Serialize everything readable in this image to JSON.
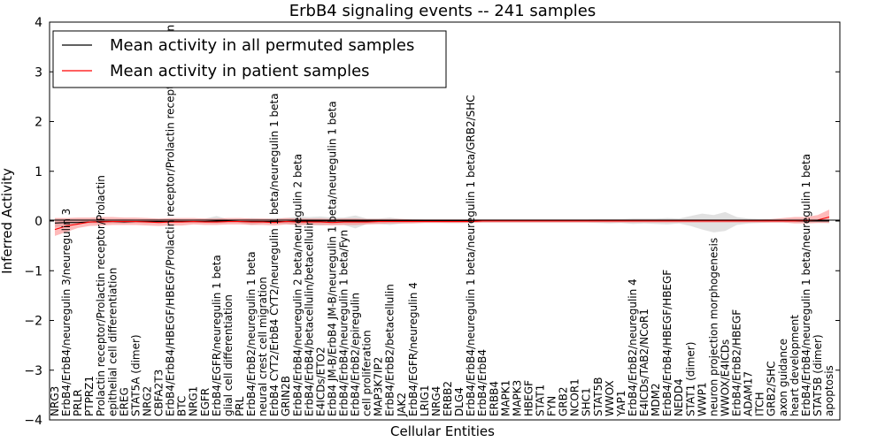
{
  "chart_data": {
    "type": "line",
    "title": "ErbB4 signaling events -- 241 samples",
    "xlabel": "Cellular Entities",
    "ylabel": "Inferred Activity",
    "ylim": [
      -4,
      4
    ],
    "yticks": [
      -4,
      -3,
      -2,
      -1,
      0,
      1,
      2,
      3,
      4
    ],
    "legend_position": "top-left",
    "categories": [
      "NRG3",
      "ErbB4/ErbB4/neuregulin 3/neuregulin 3",
      "PRLR",
      "PTPRZ1",
      "Prolactin receptor/Prolactin receptor/Prolactin",
      "epithelial cell differentiation",
      "EREG",
      "STAT5A (dimer)",
      "NRG2",
      "CBFA2T3",
      "ErbB4/ErbB4/HBEGF/HBEGF/Prolactin receptor/Prolactin receptor/Prolactin",
      "BTC",
      "NRG1",
      "EGFR",
      "ErbB4/EGFR/neuregulin 1 beta",
      "glial cell differentiation",
      "PRL",
      "ErbB4/ErbB2/neuregulin 1 beta",
      "neural crest cell migration",
      "ErbB4 CYT2/ErbB4 CYT2/neuregulin 1 beta/neuregulin 1 beta",
      "GRIN2B",
      "ErbB4/ErbB4/neuregulin 2 beta/neuregulin 2 beta",
      "ErbB4/ErbB4/betacellulin/betacellulin",
      "E4ICDs/ETO2",
      "ErbB4 JM-B/ErbB4 JM-B/neuregulin 1 beta/neuregulin 1 beta",
      "ErbB4/ErbB4/neuregulin 1 beta/Fyn",
      "ErbB4/ErbB2/epiregulin",
      "cell proliferation",
      "MAP3K7IP2",
      "ErbB4/ErbB2/betacellulin",
      "JAK2",
      "ErbB4/EGFR/neuregulin 4",
      "LRIG1",
      "NRG4",
      "ERBB2",
      "DLG4",
      "ErbB4/ErbB4/neuregulin 1 beta/neuregulin 1 beta/GRB2/SHC",
      "ErbB4/ErbB4",
      "ERBB4",
      "MAPK1",
      "MAPK3",
      "HBEGF",
      "STAT1",
      "FYN",
      "GRB2",
      "NCOR1",
      "SHC1",
      "STAT5B",
      "WWOX",
      "YAP1",
      "ErbB4/ErbB2/neuregulin 4",
      "E4ICDs/TAB2/NCoR1",
      "MDM2",
      "ErbB4/ErbB4/HBEGF/HBEGF",
      "NEDD4",
      "STAT1 (dimer)",
      "WWP1",
      "neuron projection morphogenesis",
      "WWOX/E4ICDs",
      "ErbB4/ErbB2/HBEGF",
      "ADAM17",
      "ITCH",
      "GRB2/SHC",
      "axon guidance",
      "heart development",
      "ErbB4/ErbB4/neuregulin 1 beta/neuregulin 1 beta",
      "STAT5B (dimer)",
      "apoptosis"
    ],
    "series": [
      {
        "name": "Mean activity in all permuted samples",
        "color": "#000000",
        "values": [
          -0.04,
          -0.03,
          -0.03,
          -0.02,
          -0.01,
          -0.01,
          -0.02,
          -0.01,
          -0.01,
          -0.01,
          -0.01,
          -0.01,
          -0.01,
          -0.01,
          0.0,
          0.0,
          -0.01,
          -0.01,
          -0.01,
          -0.01,
          -0.01,
          0.0,
          0.0,
          0.0,
          0.0,
          0.0,
          0.0,
          0.0,
          0.0,
          0.0,
          0.0,
          0.0,
          0.0,
          0.0,
          0.0,
          0.0,
          0.0,
          0.0,
          0.0,
          0.0,
          0.0,
          0.0,
          0.0,
          0.0,
          0.0,
          0.0,
          0.0,
          0.0,
          0.0,
          0.0,
          0.0,
          0.0,
          0.0,
          0.0,
          0.0,
          0.0,
          0.0,
          0.0,
          0.0,
          0.0,
          0.0,
          0.0,
          0.0,
          0.0,
          0.0,
          0.0,
          0.0,
          0.0
        ],
        "band_low": [
          -0.12,
          -0.1,
          -0.06,
          -0.05,
          -0.05,
          -0.04,
          -0.05,
          -0.03,
          -0.05,
          -0.04,
          -0.04,
          -0.03,
          -0.03,
          -0.04,
          -0.05,
          -0.03,
          -0.03,
          -0.08,
          -0.05,
          -0.05,
          -0.06,
          -0.08,
          -0.08,
          -0.09,
          -0.07,
          -0.08,
          -0.15,
          -0.06,
          -0.06,
          -0.08,
          -0.05,
          -0.04,
          -0.03,
          -0.03,
          -0.04,
          -0.04,
          -0.03,
          -0.03,
          -0.03,
          -0.03,
          -0.03,
          -0.03,
          -0.03,
          -0.03,
          -0.03,
          -0.03,
          -0.03,
          -0.04,
          -0.05,
          -0.04,
          -0.06,
          -0.05,
          -0.06,
          -0.07,
          -0.05,
          -0.1,
          -0.17,
          -0.23,
          -0.2,
          -0.08,
          -0.05,
          -0.04,
          -0.03,
          -0.03,
          -0.03,
          -0.03,
          -0.03,
          -0.04
        ],
        "band_high": [
          0.05,
          0.05,
          0.04,
          0.04,
          0.04,
          0.03,
          0.04,
          0.03,
          0.04,
          0.04,
          0.04,
          0.03,
          0.03,
          0.05,
          0.1,
          0.03,
          0.04,
          0.06,
          0.05,
          0.06,
          0.06,
          0.09,
          0.08,
          0.09,
          0.07,
          0.07,
          0.11,
          0.05,
          0.05,
          0.07,
          0.04,
          0.04,
          0.03,
          0.03,
          0.03,
          0.03,
          0.03,
          0.03,
          0.03,
          0.03,
          0.03,
          0.03,
          0.03,
          0.03,
          0.03,
          0.03,
          0.03,
          0.04,
          0.04,
          0.04,
          0.05,
          0.05,
          0.05,
          0.06,
          0.05,
          0.1,
          0.15,
          0.12,
          0.18,
          0.08,
          0.05,
          0.04,
          0.03,
          0.03,
          0.03,
          0.03,
          0.03,
          0.03
        ]
      },
      {
        "name": "Mean activity in patient samples",
        "color": "#ff0000",
        "values": [
          -0.17,
          -0.1,
          -0.06,
          -0.02,
          -0.02,
          -0.01,
          -0.01,
          -0.01,
          -0.02,
          -0.03,
          -0.02,
          -0.02,
          -0.01,
          -0.02,
          -0.02,
          -0.01,
          -0.01,
          -0.02,
          -0.02,
          -0.03,
          -0.01,
          -0.02,
          -0.02,
          -0.02,
          -0.03,
          -0.02,
          -0.02,
          -0.02,
          -0.01,
          -0.01,
          -0.01,
          -0.01,
          -0.01,
          -0.01,
          -0.01,
          -0.01,
          -0.01,
          0.0,
          0.0,
          0.0,
          0.0,
          0.0,
          0.0,
          0.0,
          0.0,
          0.0,
          0.0,
          0.0,
          0.0,
          0.0,
          0.0,
          0.0,
          0.0,
          0.0,
          0.0,
          0.0,
          0.0,
          0.0,
          0.0,
          0.0,
          0.0,
          0.0,
          0.0,
          0.0,
          0.0,
          0.01,
          0.02,
          0.08
        ],
        "band_low": [
          -0.3,
          -0.22,
          -0.14,
          -0.1,
          -0.09,
          -0.08,
          -0.08,
          -0.08,
          -0.09,
          -0.1,
          -0.09,
          -0.09,
          -0.07,
          -0.08,
          -0.08,
          -0.07,
          -0.07,
          -0.08,
          -0.08,
          -0.09,
          -0.07,
          -0.08,
          -0.08,
          -0.08,
          -0.09,
          -0.08,
          -0.08,
          -0.07,
          -0.06,
          -0.05,
          -0.05,
          -0.05,
          -0.04,
          -0.04,
          -0.04,
          -0.04,
          -0.04,
          -0.03,
          -0.03,
          -0.03,
          -0.03,
          -0.03,
          -0.03,
          -0.03,
          -0.03,
          -0.03,
          -0.03,
          -0.03,
          -0.03,
          -0.03,
          -0.03,
          -0.03,
          -0.03,
          -0.03,
          -0.03,
          -0.03,
          -0.03,
          -0.03,
          -0.03,
          -0.03,
          -0.03,
          -0.03,
          -0.03,
          -0.03,
          -0.05,
          -0.05,
          -0.04,
          -0.04
        ],
        "band_high": [
          0.06,
          0.06,
          0.07,
          0.07,
          0.08,
          0.08,
          0.07,
          0.07,
          0.06,
          0.05,
          0.06,
          0.06,
          0.06,
          0.05,
          0.05,
          0.06,
          0.06,
          0.05,
          0.05,
          0.04,
          0.06,
          0.05,
          0.05,
          0.05,
          0.04,
          0.05,
          0.05,
          0.04,
          0.04,
          0.04,
          0.04,
          0.03,
          0.03,
          0.03,
          0.03,
          0.03,
          0.03,
          0.03,
          0.03,
          0.03,
          0.03,
          0.03,
          0.03,
          0.03,
          0.03,
          0.03,
          0.03,
          0.03,
          0.03,
          0.03,
          0.03,
          0.03,
          0.03,
          0.03,
          0.03,
          0.03,
          0.03,
          0.03,
          0.03,
          0.03,
          0.03,
          0.03,
          0.04,
          0.06,
          0.08,
          0.08,
          0.12,
          0.23
        ]
      }
    ]
  }
}
